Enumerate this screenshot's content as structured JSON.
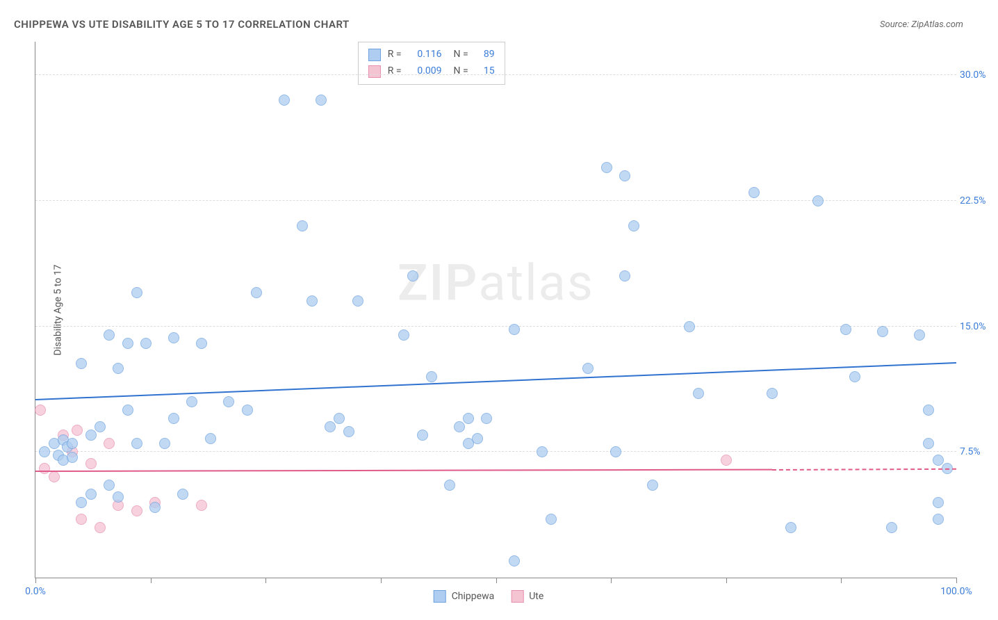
{
  "header": {
    "title": "CHIPPEWA VS UTE DISABILITY AGE 5 TO 17 CORRELATION CHART",
    "source": "Source: ZipAtlas.com"
  },
  "y_axis": {
    "label": "Disability Age 5 to 17",
    "min": 0,
    "max": 32,
    "ticks": [
      7.5,
      15.0,
      22.5,
      30.0
    ],
    "tick_labels": [
      "7.5%",
      "15.0%",
      "22.5%",
      "30.0%"
    ],
    "label_color": "#3b7dd8",
    "grid_color": "#dddddd"
  },
  "x_axis": {
    "min": 0,
    "max": 100,
    "ticks": [
      0,
      12.5,
      25,
      37.5,
      50,
      62.5,
      75,
      87.5,
      100
    ],
    "end_labels": {
      "left": "0.0%",
      "right": "100.0%"
    },
    "label_color": "#3b7dd8"
  },
  "series": {
    "chippewa": {
      "label": "Chippewa",
      "fill": "#aecdf0",
      "stroke": "#6fa3e0",
      "trend_color": "#2f72d0",
      "trend": {
        "x1": 0,
        "y1": 10.6,
        "x2": 100,
        "y2": 12.8
      },
      "R": "0.116",
      "N": "89",
      "points": [
        [
          1,
          7.5
        ],
        [
          2,
          8
        ],
        [
          2.5,
          7.3
        ],
        [
          3,
          8.2
        ],
        [
          3,
          7
        ],
        [
          3.5,
          7.8
        ],
        [
          4,
          8
        ],
        [
          4,
          7.2
        ],
        [
          5,
          12.8
        ],
        [
          5,
          4.5
        ],
        [
          6,
          8.5
        ],
        [
          6,
          5
        ],
        [
          7,
          9
        ],
        [
          8,
          14.5
        ],
        [
          8,
          5.5
        ],
        [
          9,
          12.5
        ],
        [
          9,
          4.8
        ],
        [
          10,
          14
        ],
        [
          10,
          10
        ],
        [
          11,
          17
        ],
        [
          11,
          8
        ],
        [
          12,
          14
        ],
        [
          13,
          4.2
        ],
        [
          14,
          8
        ],
        [
          15,
          14.3
        ],
        [
          15,
          9.5
        ],
        [
          16,
          5
        ],
        [
          17,
          10.5
        ],
        [
          18,
          14
        ],
        [
          19,
          8.3
        ],
        [
          21,
          10.5
        ],
        [
          23,
          10
        ],
        [
          24,
          17
        ],
        [
          27,
          28.5
        ],
        [
          29,
          21
        ],
        [
          30,
          16.5
        ],
        [
          31,
          28.5
        ],
        [
          32,
          9
        ],
        [
          33,
          9.5
        ],
        [
          34,
          8.7
        ],
        [
          35,
          16.5
        ],
        [
          40,
          14.5
        ],
        [
          41,
          18
        ],
        [
          42,
          8.5
        ],
        [
          43,
          12
        ],
        [
          45,
          5.5
        ],
        [
          46,
          9
        ],
        [
          47,
          9.5
        ],
        [
          47,
          8
        ],
        [
          48,
          8.3
        ],
        [
          49,
          9.5
        ],
        [
          52,
          14.8
        ],
        [
          52,
          1
        ],
        [
          55,
          7.5
        ],
        [
          56,
          3.5
        ],
        [
          60,
          12.5
        ],
        [
          62,
          24.5
        ],
        [
          63,
          7.5
        ],
        [
          64,
          24
        ],
        [
          64,
          18
        ],
        [
          65,
          21
        ],
        [
          67,
          5.5
        ],
        [
          71,
          15
        ],
        [
          72,
          11
        ],
        [
          78,
          23
        ],
        [
          80,
          11
        ],
        [
          82,
          3
        ],
        [
          85,
          22.5
        ],
        [
          88,
          14.8
        ],
        [
          89,
          12
        ],
        [
          92,
          14.7
        ],
        [
          93,
          3
        ],
        [
          96,
          14.5
        ],
        [
          97,
          8
        ],
        [
          97,
          10
        ],
        [
          98,
          7
        ],
        [
          98,
          3.5
        ],
        [
          98,
          4.5
        ],
        [
          99,
          6.5
        ]
      ]
    },
    "ute": {
      "label": "Ute",
      "fill": "#f5c4d3",
      "stroke": "#e88fb0",
      "trend_color": "#e05a8a",
      "trend_solid": {
        "x1": 0,
        "y1": 6.3,
        "x2": 80,
        "y2": 6.4
      },
      "trend_dashed": {
        "x1": 80,
        "y1": 6.4,
        "x2": 100,
        "y2": 6.45
      },
      "R": "0.009",
      "N": "15",
      "points": [
        [
          0.5,
          10
        ],
        [
          1,
          6.5
        ],
        [
          2,
          6
        ],
        [
          3,
          8.5
        ],
        [
          4,
          7.5
        ],
        [
          4.5,
          8.8
        ],
        [
          5,
          3.5
        ],
        [
          6,
          6.8
        ],
        [
          7,
          3
        ],
        [
          8,
          8
        ],
        [
          9,
          4.3
        ],
        [
          11,
          4
        ],
        [
          13,
          4.5
        ],
        [
          18,
          4.3
        ],
        [
          75,
          7
        ]
      ]
    }
  },
  "legend_box": {
    "rows": [
      {
        "swatch_fill": "#aecdf0",
        "swatch_stroke": "#6fa3e0",
        "R": "0.116",
        "N": "89"
      },
      {
        "swatch_fill": "#f5c4d3",
        "swatch_stroke": "#e88fb0",
        "R": "0.009",
        "N": "15"
      }
    ]
  },
  "bottom_legend": [
    {
      "label": "Chippewa",
      "fill": "#aecdf0",
      "stroke": "#6fa3e0"
    },
    {
      "label": "Ute",
      "fill": "#f5c4d3",
      "stroke": "#e88fb0"
    }
  ],
  "watermark": {
    "bold": "ZIP",
    "rest": "atlas"
  },
  "colors": {
    "axis": "#888888",
    "text": "#555555",
    "value": "#3b7dd8",
    "background": "#ffffff"
  }
}
